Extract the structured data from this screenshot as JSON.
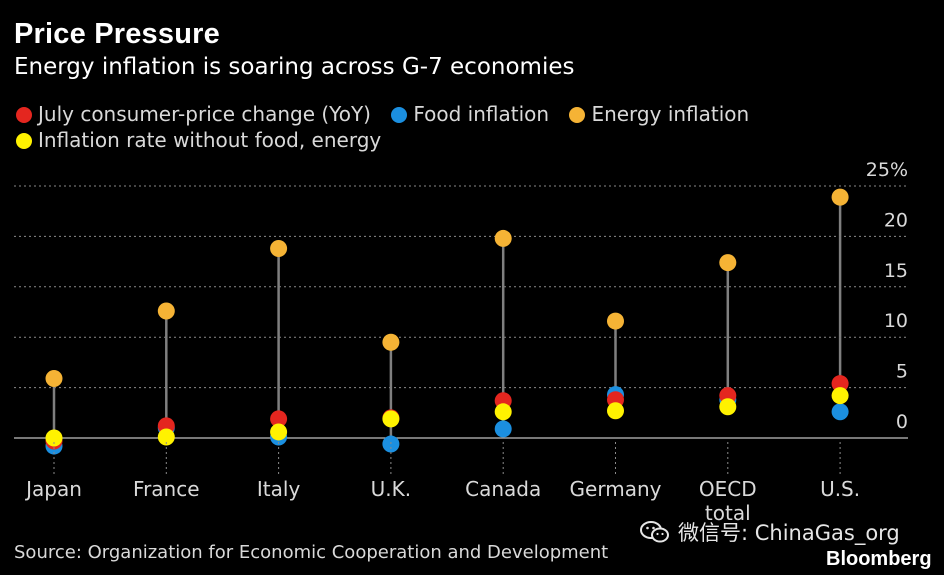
{
  "title": "Price Pressure",
  "subtitle": "Energy inflation is soaring across G-7 economies",
  "legend": [
    {
      "label": "July consumer-price change (YoY)",
      "color": "#e4261f"
    },
    {
      "label": "Food inflation",
      "color": "#1b8fe0"
    },
    {
      "label": "Energy inflation",
      "color": "#f5b335"
    },
    {
      "label": "Inflation rate without food, energy",
      "color": "#fff200"
    }
  ],
  "source": "Source: Organization for Economic Cooperation and Development",
  "watermark": "微信号: ChinaGas_org",
  "brand": "Bloomberg",
  "chart_data": {
    "type": "dot-range",
    "title": "Price Pressure",
    "subtitle": "Energy inflation is soaring across G-7 economies",
    "categories": [
      "Japan",
      "France",
      "Italy",
      "U.K.",
      "Canada",
      "Germany",
      "OECD total",
      "U.S."
    ],
    "series": [
      {
        "name": "July consumer-price change (YoY)",
        "color": "#e4261f",
        "values": [
          -0.3,
          1.2,
          1.9,
          2.0,
          3.7,
          3.8,
          4.2,
          5.4
        ]
      },
      {
        "name": "Food inflation",
        "color": "#1b8fe0",
        "values": [
          -0.8,
          1.0,
          0.1,
          -0.6,
          0.9,
          4.3,
          3.8,
          2.6
        ]
      },
      {
        "name": "Energy inflation",
        "color": "#f5b335",
        "values": [
          5.9,
          12.6,
          18.8,
          9.5,
          19.8,
          11.6,
          17.4,
          23.9
        ]
      },
      {
        "name": "Inflation rate without food, energy",
        "color": "#fff200",
        "values": [
          0.0,
          0.1,
          0.6,
          1.9,
          2.6,
          2.7,
          3.1,
          4.2
        ]
      }
    ],
    "yticks": [
      "0",
      "5",
      "10",
      "15",
      "20",
      "25%"
    ],
    "ylim": [
      -2,
      26
    ],
    "ylabel": "",
    "xlabel": "",
    "grid": true
  }
}
